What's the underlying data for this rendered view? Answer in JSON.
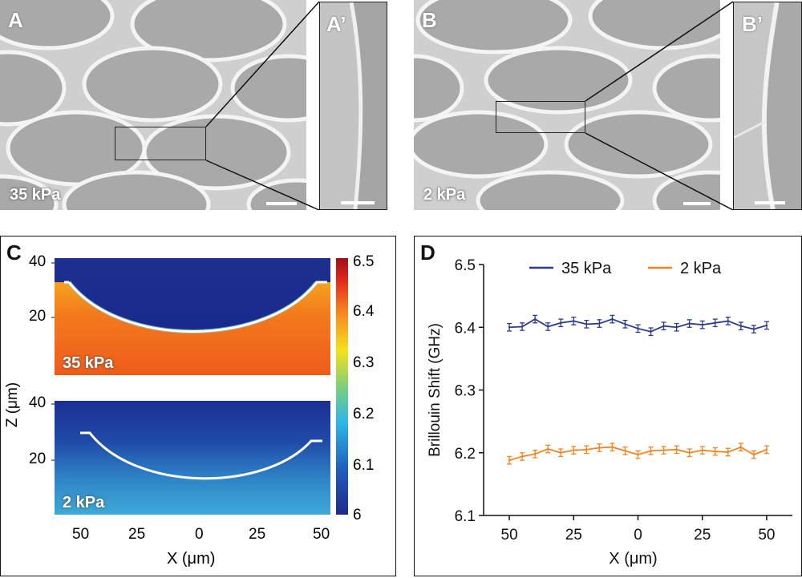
{
  "panels": {
    "a": {
      "label": "A",
      "stiffness": "35 kPa"
    },
    "a_prime": {
      "label": "A’"
    },
    "b": {
      "label": "B",
      "stiffness": "2 kPa"
    },
    "b_prime": {
      "label": "B’"
    },
    "c": {
      "label": "C",
      "top_label": "35 kPa",
      "bottom_label": "2 kPa",
      "ylabel": "Z (μm)",
      "xlabel": "X (μm)",
      "y_ticks_top": [
        "40",
        "20"
      ],
      "y_ticks_bottom": [
        "40",
        "20"
      ],
      "x_ticks": [
        "50",
        "25",
        "0",
        "25",
        "50"
      ],
      "colorbar_ticks": [
        "6.5",
        "6.4",
        "6.3",
        "6.2",
        "6.1",
        "6"
      ]
    },
    "d": {
      "label": "D"
    }
  },
  "chart_data": {
    "type": "line",
    "title": "",
    "xlabel": "X (μm)",
    "ylabel": "Brillouin Shift (GHz)",
    "x_ticks": [
      "50",
      "25",
      "0",
      "25",
      "50"
    ],
    "y_ticks": [
      "6.5",
      "6.4",
      "6.3",
      "6.2",
      "6.1"
    ],
    "ylim": [
      6.1,
      6.5
    ],
    "x": [
      -50,
      -45,
      -40,
      -35,
      -30,
      -25,
      -20,
      -15,
      -10,
      -5,
      0,
      5,
      10,
      15,
      20,
      25,
      30,
      35,
      40,
      45,
      50
    ],
    "legend_position": "top",
    "series": [
      {
        "name": "35 kPa",
        "color": "#2b3990",
        "values": [
          6.4,
          6.401,
          6.413,
          6.401,
          6.407,
          6.41,
          6.405,
          6.406,
          6.413,
          6.405,
          6.398,
          6.393,
          6.402,
          6.4,
          6.406,
          6.404,
          6.407,
          6.41,
          6.402,
          6.397,
          6.403
        ]
      },
      {
        "name": "2 kPa",
        "color": "#f58220",
        "values": [
          6.188,
          6.194,
          6.198,
          6.206,
          6.2,
          6.204,
          6.205,
          6.208,
          6.209,
          6.203,
          6.197,
          6.203,
          6.204,
          6.205,
          6.2,
          6.204,
          6.202,
          6.201,
          6.209,
          6.197,
          6.205
        ]
      }
    ]
  }
}
